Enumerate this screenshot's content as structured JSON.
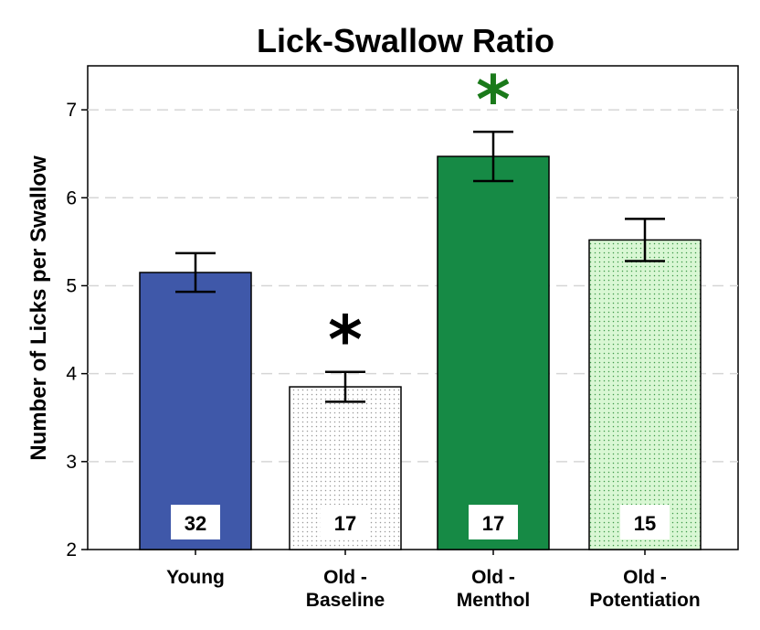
{
  "chart_data": {
    "type": "bar",
    "title": "Lick-Swallow Ratio",
    "xlabel": "",
    "ylabel": "Number of Licks per Swallow",
    "ylim": [
      2,
      7.5
    ],
    "yticks": [
      "2",
      "3",
      "4",
      "5",
      "6",
      "7"
    ],
    "grid": "horizontal dashed",
    "categories": [
      [
        "Young"
      ],
      [
        "Old -",
        "Baseline"
      ],
      [
        "Old -",
        "Menthol"
      ],
      [
        "Old -",
        "Potentiation"
      ]
    ],
    "values": [
      5.15,
      3.85,
      6.47,
      5.52
    ],
    "error_low": [
      4.93,
      3.68,
      6.19,
      5.28
    ],
    "error_high": [
      5.37,
      4.02,
      6.75,
      5.76
    ],
    "n_labels": [
      "32",
      "17",
      "17",
      "15"
    ],
    "significance": [
      "",
      "*",
      "*",
      ""
    ],
    "significance_colors": [
      "",
      "#000000",
      "#1a7a1a",
      ""
    ],
    "colors": {
      "young": "#3f58a9",
      "old_baseline": "#ffffff",
      "old_menthol": "#168a45",
      "old_potentiation": "#d9f7d4"
    },
    "patterns": [
      "solid",
      "dotted-gray",
      "solid",
      "dotted-green"
    ]
  }
}
